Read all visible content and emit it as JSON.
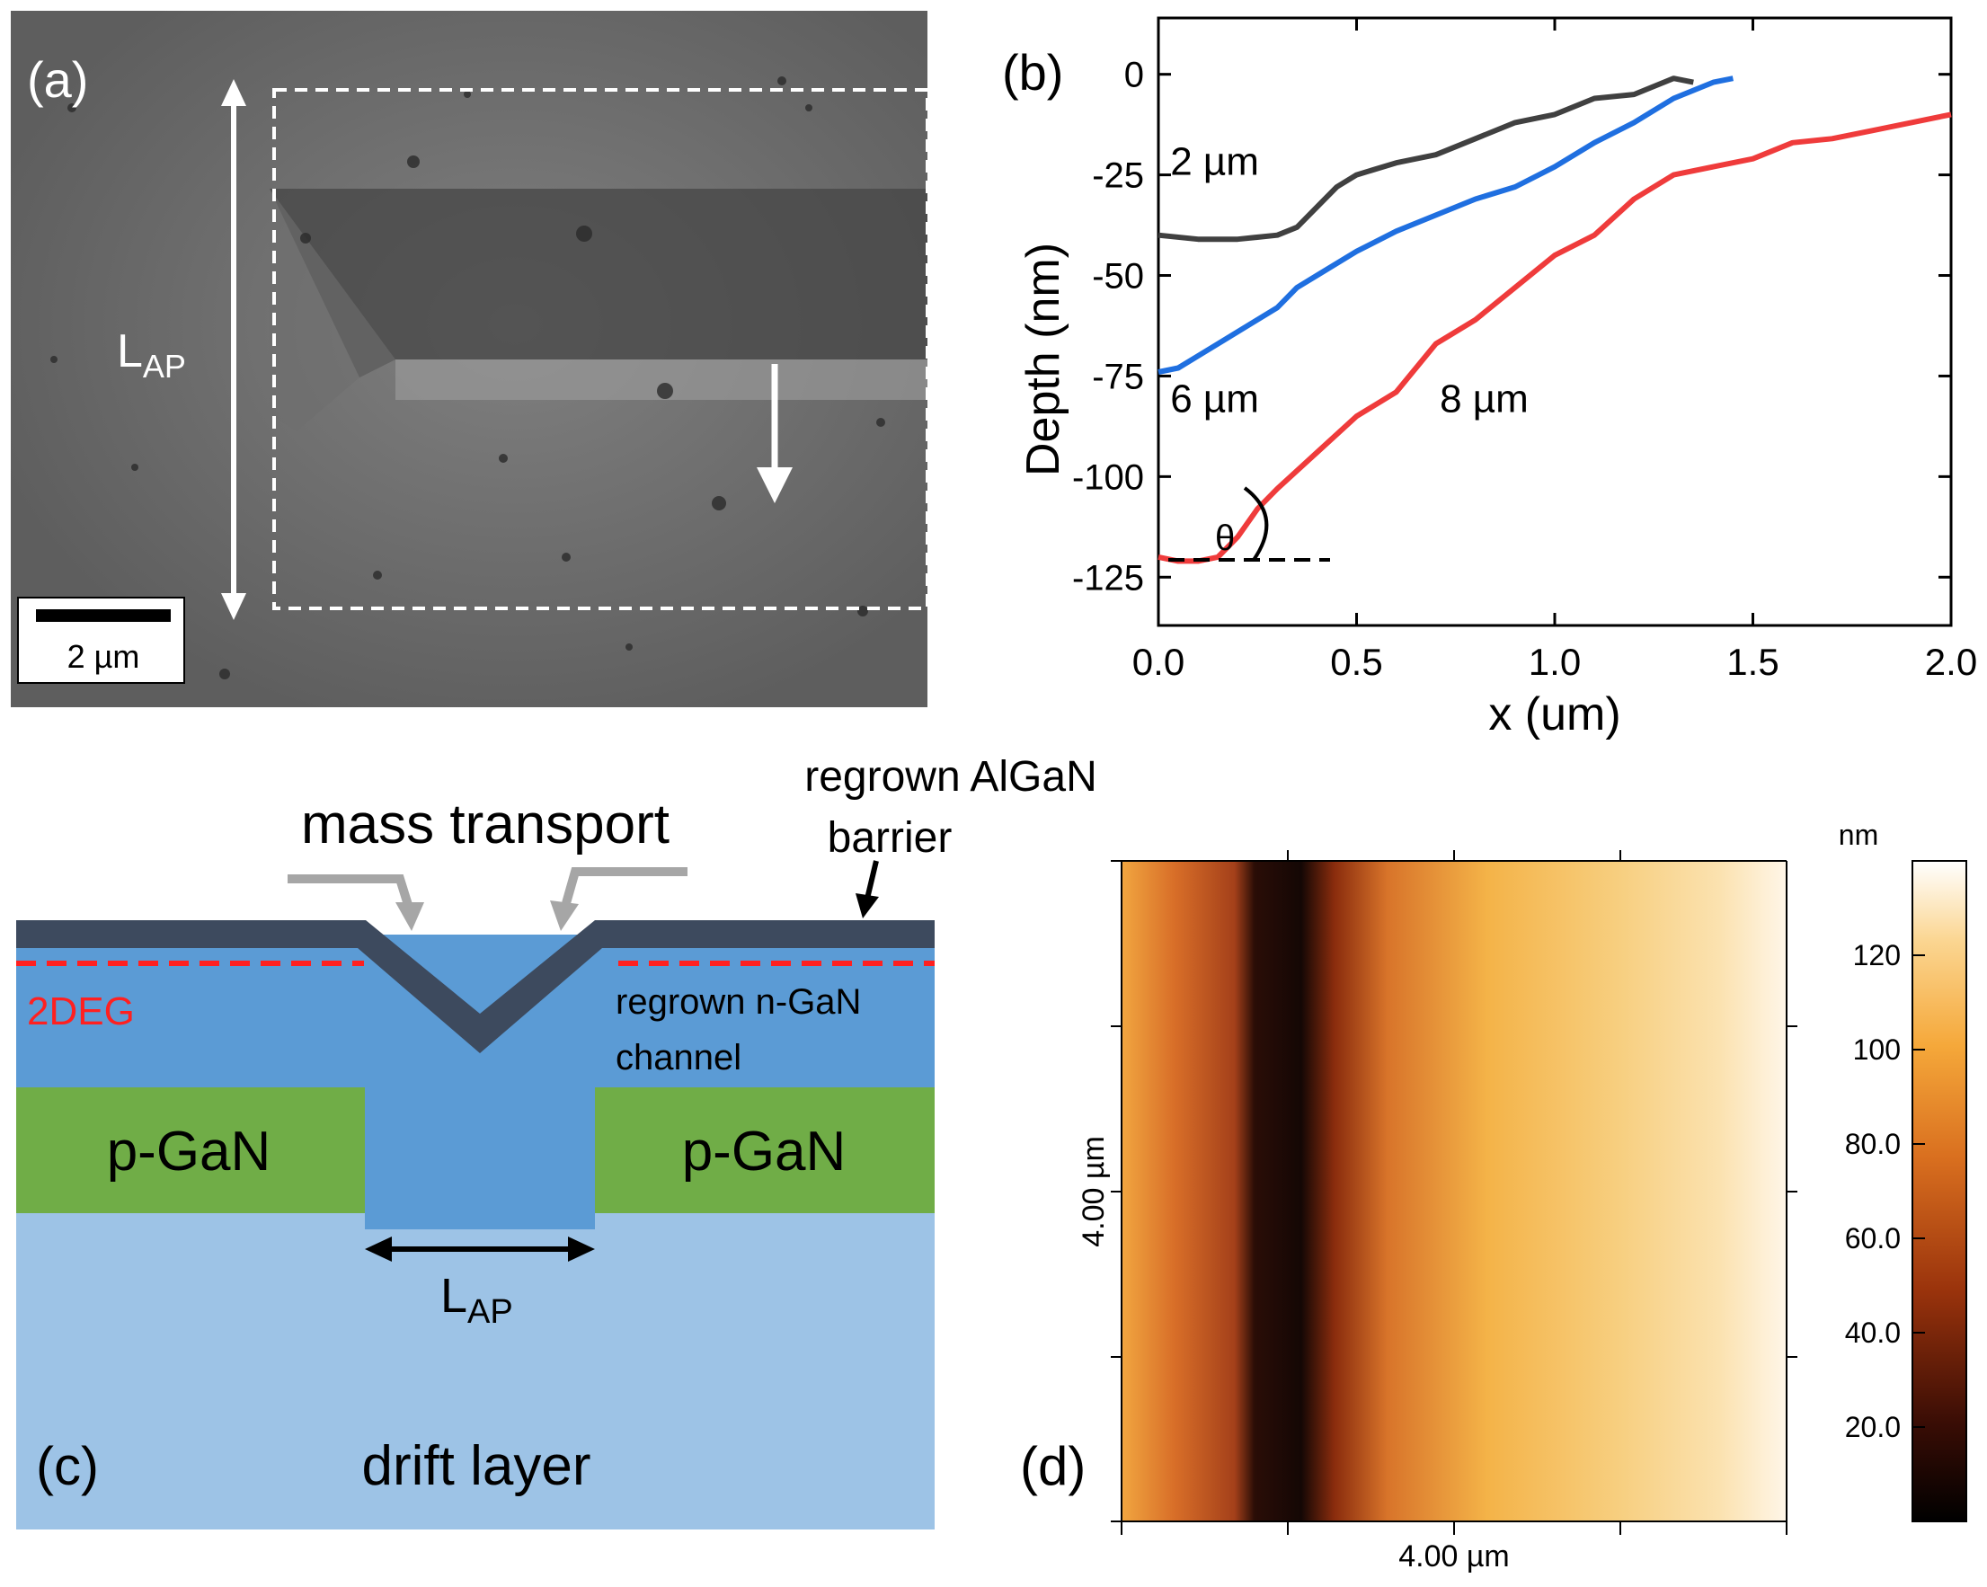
{
  "panel_a": {
    "label": "(a)",
    "lap_main": "L",
    "lap_sub": "AP",
    "scalebar_label": "2 µm"
  },
  "panel_b": {
    "label": "(b)"
  },
  "panel_c": {
    "label": "(c)",
    "mass_transport": "mass transport",
    "barrier_line1": "regrown AlGaN",
    "barrier_line2": "barrier",
    "twodeg": "2DEG",
    "channel_line1": "regrown n-GaN",
    "channel_line2": "channel",
    "pgan_left": "p-GaN",
    "pgan_right": "p-GaN",
    "lap_main": "L",
    "lap_sub": "AP",
    "drift": "drift layer",
    "colors": {
      "barrier": "#3d4a5e",
      "channel": "#5b9bd5",
      "pgan": "#70ad47",
      "drift": "#9dc3e6",
      "twodeg": "#ff2020"
    }
  },
  "panel_d": {
    "label": "(d)",
    "x_label": "4.00 µm",
    "y_label": "4.00 µm",
    "colorbar_unit": "nm",
    "colorbar_ticks": [
      "120",
      "100",
      "80.0",
      "60.0",
      "40.0",
      "20.0"
    ],
    "colorbar_values": [
      120,
      100,
      80,
      60,
      40,
      20
    ],
    "colorbar_range": [
      0,
      140
    ]
  },
  "chart_data": {
    "type": "line",
    "title": "",
    "xlabel": "x (um)",
    "ylabel": "Depth (nm)",
    "xlim": [
      0,
      2.0
    ],
    "ylim": [
      -137,
      14
    ],
    "x_ticks": [
      0.0,
      0.5,
      1.0,
      1.5,
      2.0
    ],
    "x_tick_labels": [
      "0.0",
      "0.5",
      "1.0",
      "1.5",
      "2.0"
    ],
    "y_ticks": [
      0,
      -25,
      -50,
      -75,
      -100,
      -125
    ],
    "y_tick_labels": [
      "0",
      "-25",
      "-50",
      "-75",
      "-100",
      "-125"
    ],
    "angle_label": "θ",
    "series": [
      {
        "name": "2 µm",
        "color": "#404040",
        "x": [
          0.0,
          0.1,
          0.2,
          0.3,
          0.35,
          0.4,
          0.45,
          0.5,
          0.6,
          0.7,
          0.8,
          0.9,
          1.0,
          1.1,
          1.2,
          1.25,
          1.3,
          1.35
        ],
        "y": [
          -40,
          -41,
          -41,
          -40,
          -38,
          -33,
          -28,
          -25,
          -22,
          -20,
          -16,
          -12,
          -10,
          -6,
          -5,
          -3,
          -1,
          -2
        ]
      },
      {
        "name": "6 µm",
        "color": "#1f6fe0",
        "x": [
          0.0,
          0.05,
          0.1,
          0.2,
          0.3,
          0.35,
          0.4,
          0.5,
          0.6,
          0.7,
          0.8,
          0.9,
          1.0,
          1.1,
          1.2,
          1.3,
          1.4,
          1.45
        ],
        "y": [
          -74,
          -73,
          -70,
          -64,
          -58,
          -53,
          -50,
          -44,
          -39,
          -35,
          -31,
          -28,
          -23,
          -17,
          -12,
          -6,
          -2,
          -1
        ]
      },
      {
        "name": "8 µm",
        "color": "#ef3b3b",
        "x": [
          0.0,
          0.05,
          0.1,
          0.15,
          0.2,
          0.25,
          0.3,
          0.4,
          0.5,
          0.6,
          0.7,
          0.8,
          0.9,
          1.0,
          1.1,
          1.2,
          1.3,
          1.4,
          1.5,
          1.6,
          1.7,
          1.8,
          1.9,
          2.0
        ],
        "y": [
          -120,
          -121,
          -121,
          -120,
          -115,
          -108,
          -103,
          -94,
          -85,
          -79,
          -67,
          -61,
          -53,
          -45,
          -40,
          -31,
          -25,
          -23,
          -21,
          -17,
          -16,
          -14,
          -12,
          -10
        ]
      }
    ],
    "series_labels": [
      {
        "name": "2 µm",
        "x": 0.03,
        "y": -25
      },
      {
        "name": "6 µm",
        "x": 0.03,
        "y": -84
      },
      {
        "name": "8 µm",
        "x": 0.71,
        "y": -84
      }
    ]
  }
}
